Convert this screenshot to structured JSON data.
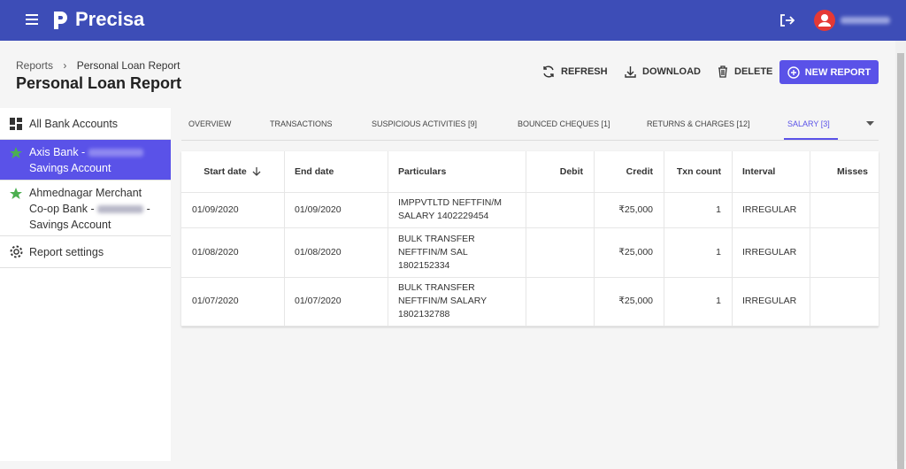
{
  "header": {
    "brand": "Precisa"
  },
  "breadcrumb": {
    "root": "Reports",
    "current": "Personal Loan Report"
  },
  "page_title": "Personal Loan Report",
  "actions": [
    "REFRESH",
    "DOWNLOAD",
    "DELETE",
    "NEW REPORT"
  ],
  "sidebar": {
    "all_accounts": "All Bank Accounts",
    "accounts": [
      {
        "bank": "Axis Bank -",
        "type": "Savings Account"
      },
      {
        "bank": "Ahmednagar Merchant Co-op Bank -",
        "type": "- Savings Account"
      }
    ],
    "settings": "Report settings"
  },
  "tabs": [
    "OVERVIEW",
    "TRANSACTIONS",
    "SUSPICIOUS ACTIVITIES [9]",
    "BOUNCED CHEQUES [1]",
    "RETURNS & CHARGES [12]",
    "SALARY [3]"
  ],
  "table": {
    "columns": [
      "Start date",
      "End date",
      "Particulars",
      "Debit",
      "Credit",
      "Txn count",
      "Interval",
      "Misses"
    ],
    "rows": [
      {
        "start": "01/09/2020",
        "end": "01/09/2020",
        "particulars": [
          "IMPPVTLTD NEFTFIN/M",
          "SALARY 1402229454"
        ],
        "credit": "₹25,000",
        "count": "1",
        "interval": "IRREGULAR"
      },
      {
        "start": "01/08/2020",
        "end": "01/08/2020",
        "particulars": [
          "BULK TRANSFER",
          "NEFTFIN/M SAL",
          "1802152334"
        ],
        "credit": "₹25,000",
        "count": "1",
        "interval": "IRREGULAR"
      },
      {
        "start": "01/07/2020",
        "end": "01/07/2020",
        "particulars": [
          "BULK TRANSFER",
          "NEFTFIN/M SALARY",
          "1802132788"
        ],
        "credit": "₹25,000",
        "count": "1",
        "interval": "IRREGULAR"
      }
    ]
  }
}
